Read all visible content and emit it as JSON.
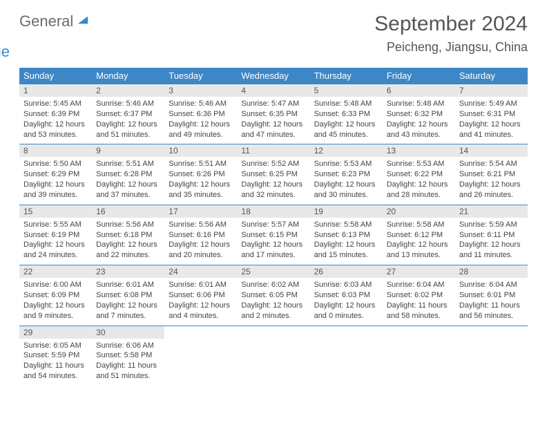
{
  "brand": {
    "word1": "General",
    "word2": "Blue",
    "logo_color": "#3d87c7"
  },
  "title": "September 2024",
  "location": "Peicheng, Jiangsu, China",
  "colors": {
    "header_bg": "#3d87c7",
    "row_border": "#3d87c7",
    "daynum_bg": "#e8e8e8",
    "text": "#444444"
  },
  "dows": [
    "Sunday",
    "Monday",
    "Tuesday",
    "Wednesday",
    "Thursday",
    "Friday",
    "Saturday"
  ],
  "weeks": [
    [
      {
        "n": "1",
        "sr": "5:45 AM",
        "ss": "6:39 PM",
        "dl": "12 hours and 53 minutes."
      },
      {
        "n": "2",
        "sr": "5:46 AM",
        "ss": "6:37 PM",
        "dl": "12 hours and 51 minutes."
      },
      {
        "n": "3",
        "sr": "5:46 AM",
        "ss": "6:36 PM",
        "dl": "12 hours and 49 minutes."
      },
      {
        "n": "4",
        "sr": "5:47 AM",
        "ss": "6:35 PM",
        "dl": "12 hours and 47 minutes."
      },
      {
        "n": "5",
        "sr": "5:48 AM",
        "ss": "6:33 PM",
        "dl": "12 hours and 45 minutes."
      },
      {
        "n": "6",
        "sr": "5:48 AM",
        "ss": "6:32 PM",
        "dl": "12 hours and 43 minutes."
      },
      {
        "n": "7",
        "sr": "5:49 AM",
        "ss": "6:31 PM",
        "dl": "12 hours and 41 minutes."
      }
    ],
    [
      {
        "n": "8",
        "sr": "5:50 AM",
        "ss": "6:29 PM",
        "dl": "12 hours and 39 minutes."
      },
      {
        "n": "9",
        "sr": "5:51 AM",
        "ss": "6:28 PM",
        "dl": "12 hours and 37 minutes."
      },
      {
        "n": "10",
        "sr": "5:51 AM",
        "ss": "6:26 PM",
        "dl": "12 hours and 35 minutes."
      },
      {
        "n": "11",
        "sr": "5:52 AM",
        "ss": "6:25 PM",
        "dl": "12 hours and 32 minutes."
      },
      {
        "n": "12",
        "sr": "5:53 AM",
        "ss": "6:23 PM",
        "dl": "12 hours and 30 minutes."
      },
      {
        "n": "13",
        "sr": "5:53 AM",
        "ss": "6:22 PM",
        "dl": "12 hours and 28 minutes."
      },
      {
        "n": "14",
        "sr": "5:54 AM",
        "ss": "6:21 PM",
        "dl": "12 hours and 26 minutes."
      }
    ],
    [
      {
        "n": "15",
        "sr": "5:55 AM",
        "ss": "6:19 PM",
        "dl": "12 hours and 24 minutes."
      },
      {
        "n": "16",
        "sr": "5:56 AM",
        "ss": "6:18 PM",
        "dl": "12 hours and 22 minutes."
      },
      {
        "n": "17",
        "sr": "5:56 AM",
        "ss": "6:16 PM",
        "dl": "12 hours and 20 minutes."
      },
      {
        "n": "18",
        "sr": "5:57 AM",
        "ss": "6:15 PM",
        "dl": "12 hours and 17 minutes."
      },
      {
        "n": "19",
        "sr": "5:58 AM",
        "ss": "6:13 PM",
        "dl": "12 hours and 15 minutes."
      },
      {
        "n": "20",
        "sr": "5:58 AM",
        "ss": "6:12 PM",
        "dl": "12 hours and 13 minutes."
      },
      {
        "n": "21",
        "sr": "5:59 AM",
        "ss": "6:11 PM",
        "dl": "12 hours and 11 minutes."
      }
    ],
    [
      {
        "n": "22",
        "sr": "6:00 AM",
        "ss": "6:09 PM",
        "dl": "12 hours and 9 minutes."
      },
      {
        "n": "23",
        "sr": "6:01 AM",
        "ss": "6:08 PM",
        "dl": "12 hours and 7 minutes."
      },
      {
        "n": "24",
        "sr": "6:01 AM",
        "ss": "6:06 PM",
        "dl": "12 hours and 4 minutes."
      },
      {
        "n": "25",
        "sr": "6:02 AM",
        "ss": "6:05 PM",
        "dl": "12 hours and 2 minutes."
      },
      {
        "n": "26",
        "sr": "6:03 AM",
        "ss": "6:03 PM",
        "dl": "12 hours and 0 minutes."
      },
      {
        "n": "27",
        "sr": "6:04 AM",
        "ss": "6:02 PM",
        "dl": "11 hours and 58 minutes."
      },
      {
        "n": "28",
        "sr": "6:04 AM",
        "ss": "6:01 PM",
        "dl": "11 hours and 56 minutes."
      }
    ],
    [
      {
        "n": "29",
        "sr": "6:05 AM",
        "ss": "5:59 PM",
        "dl": "11 hours and 54 minutes."
      },
      {
        "n": "30",
        "sr": "6:06 AM",
        "ss": "5:58 PM",
        "dl": "11 hours and 51 minutes."
      },
      null,
      null,
      null,
      null,
      null
    ]
  ],
  "labels": {
    "sunrise": "Sunrise:",
    "sunset": "Sunset:",
    "daylight": "Daylight:"
  }
}
